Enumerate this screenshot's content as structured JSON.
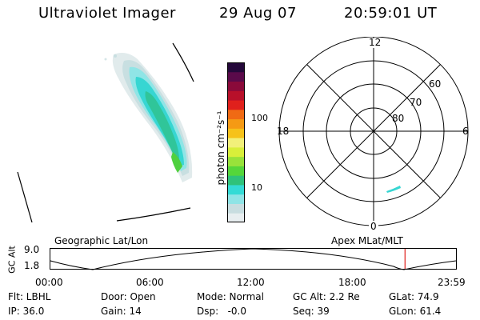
{
  "header": {
    "title": "Ultraviolet Imager",
    "date": "29 Aug 07",
    "time": "20:59:01 UT"
  },
  "colorbar": {
    "unit_label": "photon cm⁻²s⁻¹",
    "ticks": [
      "100",
      "10"
    ],
    "colors": [
      "#e8eef0",
      "#c8dde0",
      "#8fe4e6",
      "#34dbd6",
      "#2fc27a",
      "#55d63a",
      "#98e23a",
      "#d9ef3a",
      "#f2f07a",
      "#f6c21a",
      "#f59a14",
      "#f06a14",
      "#e0201c",
      "#b8102a",
      "#8a0a3a",
      "#5a0a4a",
      "#24083a"
    ]
  },
  "polar_plot": {
    "mlt_labels": {
      "top": "12",
      "bottom": "0",
      "left": "18",
      "right": "6"
    },
    "lat_labels": [
      "60",
      "70",
      "80"
    ]
  },
  "timeline": {
    "left_labels": [
      "GC Alt",
      "9.0",
      "1.8"
    ],
    "left_title": "Geographic Lat/Lon",
    "right_title": "Apex  MLat/MLT",
    "time_ticks": [
      "00:00",
      "06:00",
      "12:00",
      "18:00",
      "23:59"
    ],
    "current_time_fraction": 0.8743
  },
  "status": {
    "row1": [
      "Flt: LBHL",
      "Door: Open",
      "Mode: Normal",
      "GC Alt: 2.2 Re",
      "GLat: 74.9"
    ],
    "row2": [
      "IP: 36.0",
      "Gain: 14",
      "Dsp:   -0.0",
      "Seq: 39",
      "GLon: 61.4"
    ]
  }
}
